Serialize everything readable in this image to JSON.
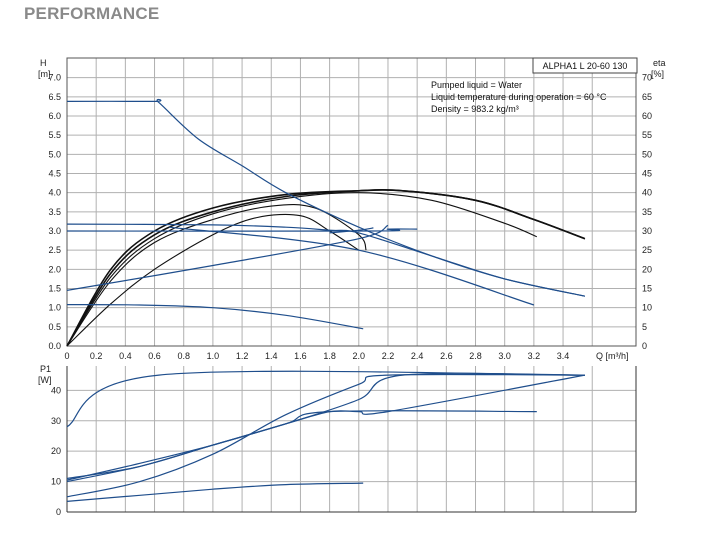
{
  "heading": "PERFORMANCE",
  "chart_data": [
    {
      "type": "line",
      "model": "ALPHA1 L 20-60 130",
      "info": [
        "Pumped liquid = Water",
        "Liquid temperature during operation = 60 °C",
        "Density = 983.2 kg/m³"
      ],
      "y_left_label": [
        "H",
        "[m]"
      ],
      "y_right_label": [
        "eta",
        "[%]"
      ],
      "x_label": "Q [m³/h]",
      "xlim": [
        0,
        3.9
      ],
      "ylim_left": [
        0,
        7.0
      ],
      "ylim_right": [
        0,
        70
      ],
      "x_ticks": [
        "0",
        "0.2",
        "0.4",
        "0.6",
        "0.8",
        "1.0",
        "1.2",
        "1.4",
        "1.6",
        "1.8",
        "2.0",
        "2.2",
        "2.4",
        "2.6",
        "2.8",
        "3.0",
        "3.2",
        "3.4"
      ],
      "y_left_ticks": [
        "0.0",
        "0.5",
        "1.0",
        "1.5",
        "2.0",
        "2.5",
        "3.0",
        "3.5",
        "4.0",
        "4.5",
        "5.0",
        "5.5",
        "6.0",
        "6.5",
        "7.0"
      ],
      "y_right_ticks": [
        "0",
        "5",
        "10",
        "15",
        "20",
        "25",
        "30",
        "35",
        "40",
        "45",
        "50",
        "55",
        "60",
        "65",
        "70"
      ],
      "grid": true,
      "colors": {
        "head": "#1f4e8c",
        "efficiency": "#111111",
        "grid": "#b0b0b0"
      },
      "head_curves": [
        {
          "x": [
            0,
            0.6,
            0.63,
            0.9,
            1.2,
            1.5,
            2.0,
            2.5,
            3.0,
            3.55
          ],
          "y": [
            6.38,
            6.38,
            6.35,
            5.4,
            4.7,
            4.0,
            3.1,
            2.35,
            1.75,
            1.3
          ]
        },
        {
          "x": [
            0,
            1.0,
            1.5,
            1.8,
            2.0,
            2.5,
            3.0,
            3.55
          ],
          "y": [
            3.18,
            3.16,
            3.1,
            3.02,
            2.95,
            2.35,
            1.75,
            1.3
          ]
        },
        {
          "x": [
            0,
            2.1,
            2.2,
            2.4
          ],
          "y": [
            3.0,
            3.0,
            3.05,
            3.05
          ]
        },
        {
          "x": [
            0,
            1.0,
            2.0,
            2.2
          ],
          "y": [
            1.45,
            2.1,
            2.8,
            3.15
          ]
        },
        {
          "x": [
            1.8,
            2.0,
            2.1
          ],
          "y": [
            2.95,
            3.02,
            3.08
          ]
        },
        {
          "x": [
            0.7,
            2.0,
            3.2
          ],
          "y": [
            3.1,
            2.5,
            1.07
          ]
        },
        {
          "x": [
            0,
            0.5,
            1.0,
            1.5,
            2.03
          ],
          "y": [
            1.08,
            1.07,
            1.0,
            0.8,
            0.45
          ]
        }
      ],
      "eff_curves": [
        {
          "x": [
            0,
            0.3,
            0.6,
            1.0,
            1.5,
            2.0,
            2.3,
            2.8,
            3.2,
            3.55
          ],
          "y": [
            0,
            20,
            30,
            36,
            39.5,
            40.5,
            40.5,
            38,
            33,
            28
          ]
        },
        {
          "x": [
            0,
            0.3,
            0.6,
            1.0,
            1.5,
            2.0,
            2.3,
            2.8,
            3.2,
            3.55
          ],
          "y": [
            0,
            19,
            29,
            35,
            39,
            40.5,
            40.5,
            38,
            33,
            28
          ]
        },
        {
          "x": [
            0,
            0.3,
            0.6,
            1.0,
            1.5,
            2.0,
            2.5,
            3.0,
            3.22
          ],
          "y": [
            0,
            18,
            28,
            34.5,
            38.5,
            40,
            38,
            32,
            28.5
          ]
        },
        {
          "x": [
            0,
            0.3,
            0.6,
            1.0,
            1.4,
            1.7,
            2.0,
            2.05
          ],
          "y": [
            0,
            17,
            27,
            33,
            36.5,
            36,
            29,
            25
          ]
        },
        {
          "x": [
            0,
            0.3,
            0.6,
            1.0,
            1.3,
            1.6,
            1.8,
            2.0
          ],
          "y": [
            0,
            11,
            20,
            29,
            33.5,
            34,
            30,
            25
          ]
        }
      ],
      "p1_panel": {
        "y_label": [
          "P1",
          "[W]"
        ],
        "ylim": [
          0,
          48
        ],
        "y_ticks": [
          "0",
          "10",
          "20",
          "30",
          "40"
        ],
        "curves": [
          {
            "x": [
              0,
              0.63,
              3.55
            ],
            "y": [
              28,
              45,
              45
            ]
          },
          {
            "x": [
              0,
              0.5,
              1.0,
              1.5,
              2.0,
              2.3,
              3.55
            ],
            "y": [
              11,
              15,
              22,
              29,
              37,
              45,
              45
            ]
          },
          {
            "x": [
              0,
              0.5,
              1.0,
              1.5,
              1.8,
              2.0,
              2.2,
              3.55
            ],
            "y": [
              10.5,
              16,
              22,
              29,
              33,
              33,
              33,
              45
            ]
          },
          {
            "x": [
              0,
              0.5,
              1.0,
              1.5,
              1.8,
              3.22
            ],
            "y": [
              10,
              15,
              22,
              29,
              33,
              33
            ]
          },
          {
            "x": [
              0,
              0.5,
              1.0,
              1.5,
              2.0,
              2.2,
              3.55
            ],
            "y": [
              5,
              10,
              19,
              32,
              42,
              45,
              45
            ]
          },
          {
            "x": [
              0,
              0.5,
              1.0,
              1.5,
              2.03
            ],
            "y": [
              3.5,
              5.5,
              7.5,
              9,
              9.5
            ]
          }
        ]
      }
    }
  ]
}
